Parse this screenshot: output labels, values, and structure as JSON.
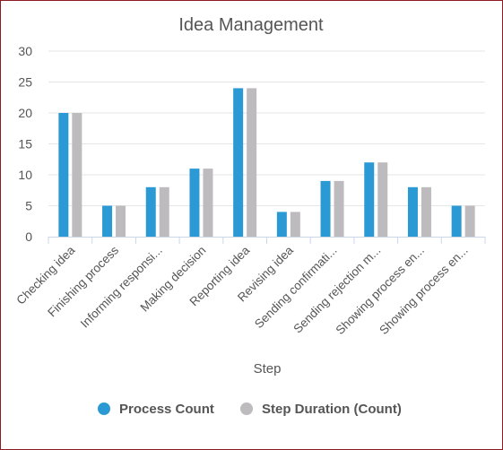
{
  "chart_data": {
    "type": "bar",
    "title": "Idea Management",
    "xlabel": "Step",
    "ylabel": "",
    "ylim": [
      0,
      30
    ],
    "yticks": [
      0,
      5,
      10,
      15,
      20,
      25,
      30
    ],
    "grid": true,
    "legend_position": "bottom",
    "categories": [
      "Checking idea",
      "Finishing process",
      "Informing responsi...",
      "Making decision",
      "Reporting idea",
      "Revising idea",
      "Sending confirmati...",
      "Sending rejection m...",
      "Showing process en...",
      "Showing process en..."
    ],
    "series": [
      {
        "name": "Process Count",
        "color": "#2b9ad4",
        "values": [
          20,
          5,
          8,
          11,
          24,
          4,
          9,
          12,
          8,
          5
        ]
      },
      {
        "name": "Step Duration (Count)",
        "color": "#bebbbf",
        "values": [
          20,
          5,
          8,
          11,
          24,
          4,
          9,
          12,
          8,
          5
        ]
      }
    ]
  }
}
